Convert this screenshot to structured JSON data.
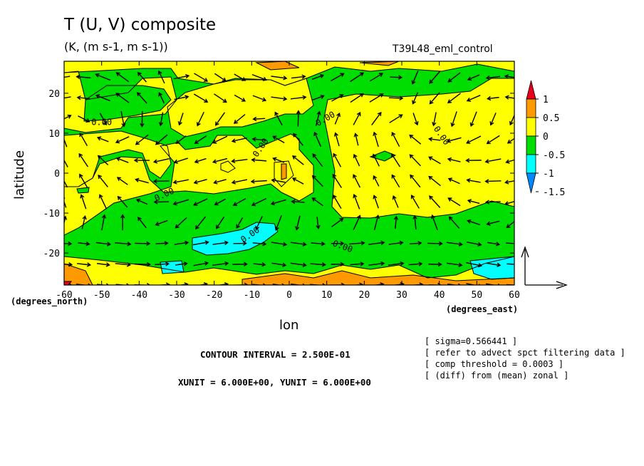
{
  "chart_data": {
    "type": "contour+vector",
    "title": "T (U, V) composite",
    "subtitle": "(K, (m s-1, m s-1))",
    "run_label": "T39L48_eml_control",
    "xlabel": "lon",
    "ylabel": "latitude",
    "x_unit_label": "(degrees_east)",
    "y_unit_label": "(degrees_north)",
    "xlim": [
      -60,
      60
    ],
    "ylim": [
      -28,
      28
    ],
    "x_ticks": [
      "-60",
      "-50",
      "-40",
      "-30",
      "-20",
      "-10",
      "0",
      "10",
      "20",
      "30",
      "40",
      "50",
      "60"
    ],
    "y_ticks": [
      "20",
      "10",
      "0",
      "-10",
      "-20"
    ],
    "colorbar": {
      "labels": [
        "1",
        "0.5",
        "0",
        "-0.5",
        "-1",
        "-1.5"
      ],
      "colors": [
        "#e8001c",
        "#ff9900",
        "#ffff00",
        "#00dd00",
        "#00ffff",
        "#0088ff"
      ]
    },
    "contour_labels": [
      "0.00",
      "0.00",
      "0.00",
      "0.00",
      "0.00",
      "0.00",
      "0.00"
    ],
    "contour_interval": "CONTOUR INTERVAL = 2.500E-01",
    "units_line": "XUNIT = 6.000E+00, YUNIT = 6.000E+00",
    "notes": [
      "[ sigma=0.566441 ]",
      "[ refer to advect spct filtering data ]",
      "[ comp threshold = 0.0003 ]",
      "[ (diff) from (mean) zonal ]"
    ]
  },
  "colors": {
    "positive_high": "#ff9900",
    "positive": "#ffff00",
    "negative": "#00dd00",
    "negative_low": "#00ffff",
    "arrows": "#000000"
  }
}
